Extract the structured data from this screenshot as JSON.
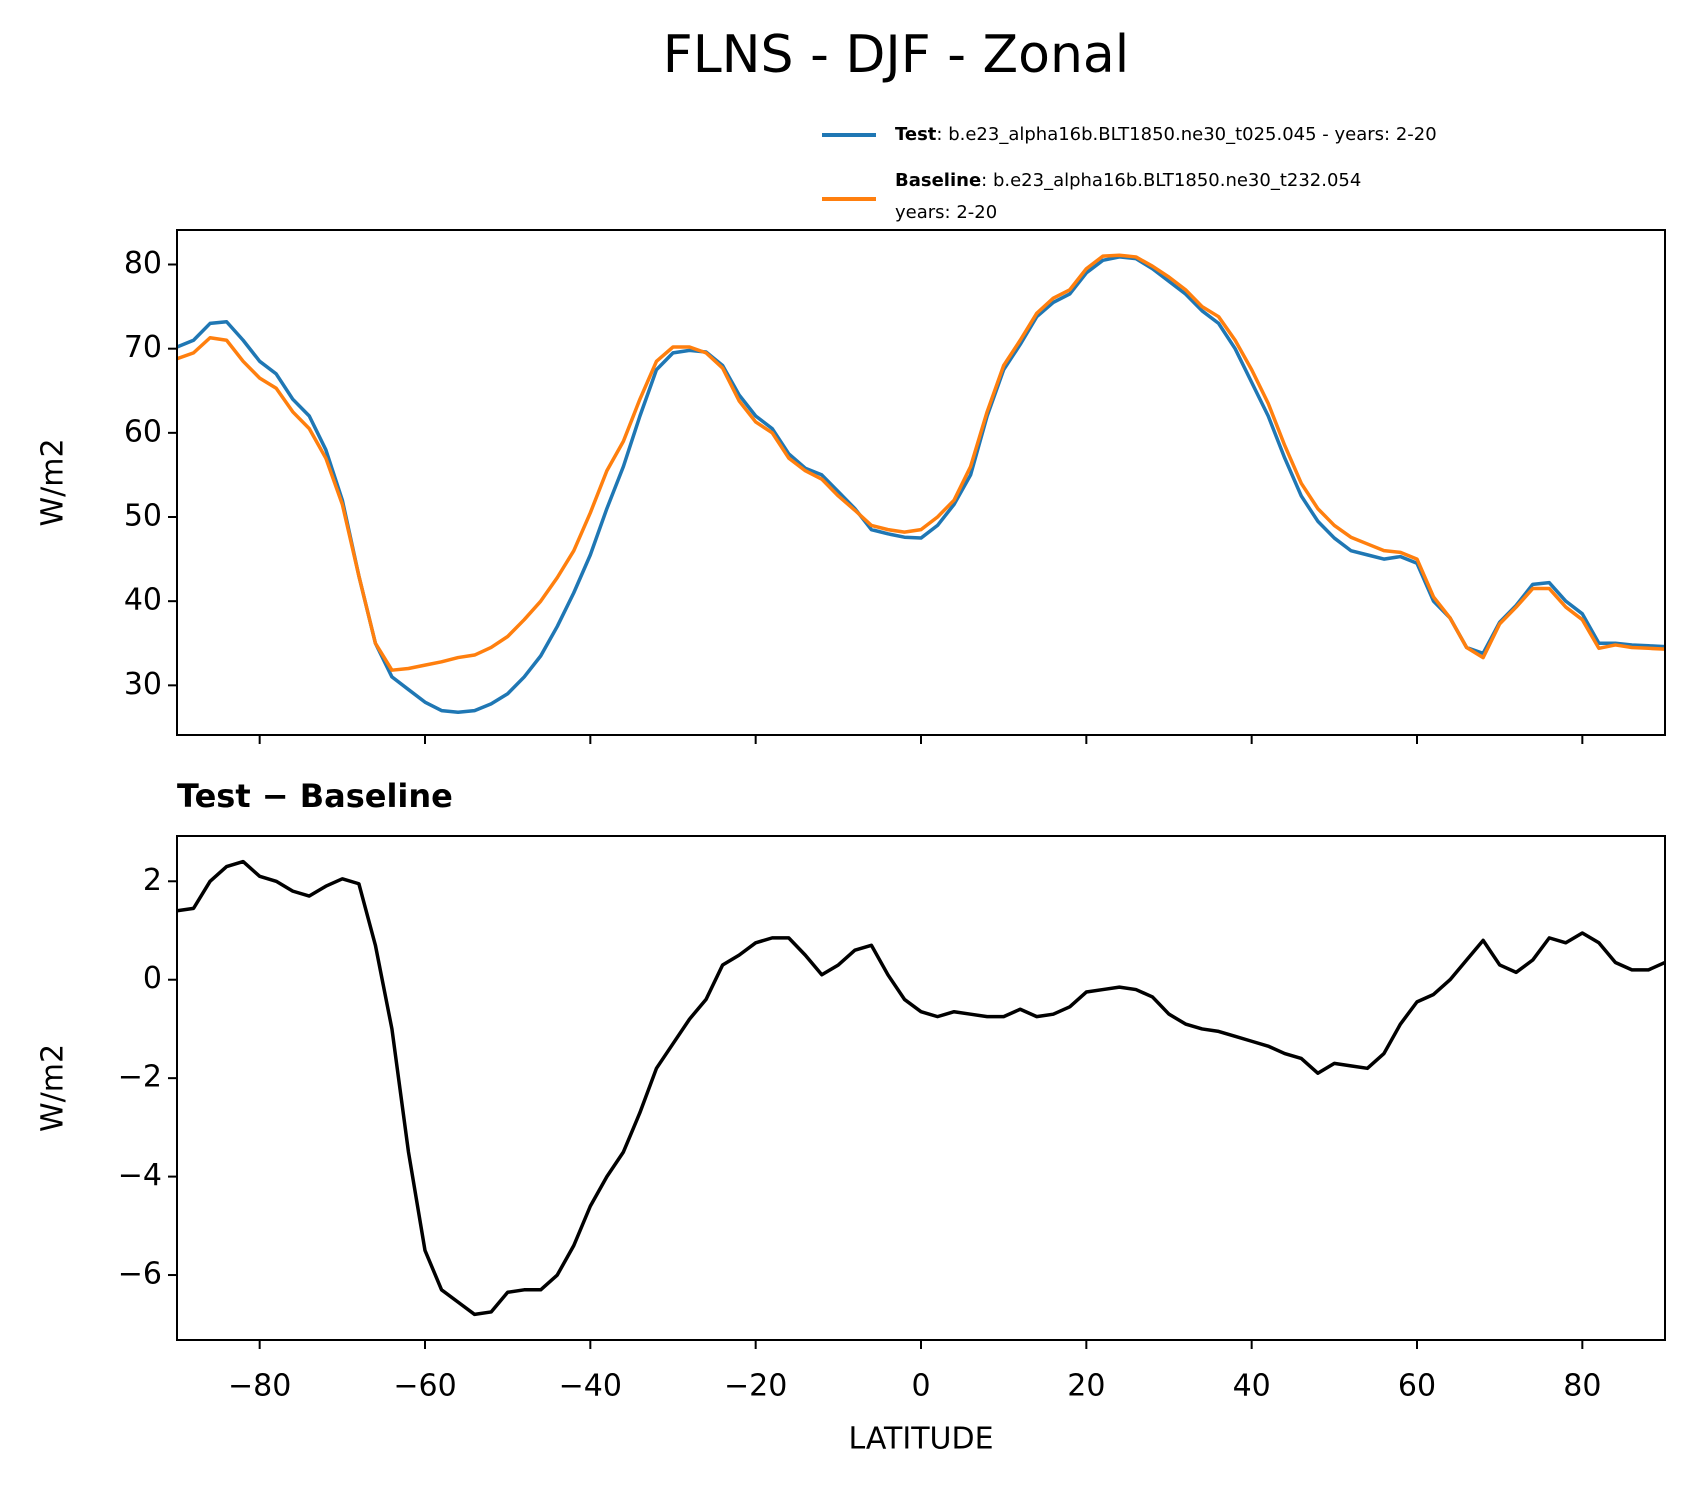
{
  "title": "FLNS - DJF - Zonal",
  "chart_data": [
    {
      "type": "line",
      "ylabel": "W/m2",
      "xlim": [
        -90,
        90
      ],
      "ylim": [
        24.1,
        84.1
      ],
      "yticks": [
        30,
        40,
        50,
        60,
        70,
        80
      ],
      "legend": "upper right",
      "x": [
        -90,
        -88,
        -86,
        -84,
        -82,
        -80,
        -78,
        -76,
        -74,
        -72,
        -70,
        -68,
        -66,
        -64,
        -62,
        -60,
        -58,
        -56,
        -54,
        -52,
        -50,
        -48,
        -46,
        -44,
        -42,
        -40,
        -38,
        -36,
        -34,
        -32,
        -30,
        -28,
        -26,
        -24,
        -22,
        -20,
        -18,
        -16,
        -14,
        -12,
        -10,
        -8,
        -6,
        -4,
        -2,
        0,
        2,
        4,
        6,
        8,
        10,
        12,
        14,
        16,
        18,
        20,
        22,
        24,
        26,
        28,
        30,
        32,
        34,
        36,
        38,
        40,
        42,
        44,
        46,
        48,
        50,
        52,
        54,
        56,
        58,
        60,
        62,
        64,
        66,
        68,
        70,
        72,
        74,
        76,
        78,
        80,
        82,
        84,
        86,
        88,
        90
      ],
      "series": [
        {
          "name": "Test",
          "description": [
            ": b.e23_alpha16b.BLT1850.ne30_t025.045 - years: 2-20"
          ],
          "color": "#1f77b4",
          "values": [
            70.2,
            71,
            73,
            73.2,
            71,
            68.5,
            67,
            64,
            62,
            58,
            52,
            43,
            35,
            31,
            29.5,
            28,
            27,
            26.8,
            27,
            27.8,
            29,
            31,
            33.5,
            37,
            41,
            45.5,
            51,
            56,
            62,
            67.5,
            69.5,
            69.8,
            69.6,
            68,
            64.5,
            62,
            60.5,
            57.5,
            55.8,
            55,
            53,
            51,
            48.5,
            48,
            47.6,
            47.5,
            49,
            51.5,
            55,
            62,
            67.5,
            70.5,
            73.8,
            75.5,
            76.5,
            79,
            80.5,
            80.9,
            80.7,
            79.5,
            78,
            76.5,
            74.5,
            73,
            70,
            66,
            62,
            57,
            52.5,
            49.5,
            47.5,
            46,
            45.5,
            45,
            45.3,
            44.5,
            40,
            38,
            34.5,
            33.8,
            37.5,
            39.5,
            42,
            42.2,
            40,
            38.5,
            35,
            35,
            34.8,
            34.7,
            34.6
          ]
        },
        {
          "name": "Baseline",
          "description": [
            ": b.e23_alpha16b.BLT1850.ne30_t232.054",
            "years: 2-20"
          ],
          "color": "#ff7f0e",
          "values": [
            68.8,
            69.5,
            71.3,
            71,
            68.5,
            66.5,
            65.3,
            62.5,
            60.5,
            57,
            51.5,
            43,
            35,
            31.8,
            32,
            32.4,
            32.8,
            33.3,
            33.6,
            34.5,
            35.8,
            37.8,
            40,
            42.8,
            46,
            50.5,
            55.5,
            59,
            64,
            68.5,
            70.2,
            70.2,
            69.5,
            67.7,
            63.8,
            61.3,
            60,
            57,
            55.5,
            54.5,
            52.5,
            50.8,
            49,
            48.5,
            48.2,
            48.5,
            50,
            52,
            56,
            62.5,
            68,
            71,
            74.2,
            76,
            77,
            79.5,
            81,
            81.1,
            80.9,
            79.8,
            78.5,
            77,
            75,
            73.8,
            71,
            67.5,
            63.5,
            58.5,
            54,
            51,
            49,
            47.6,
            46.8,
            46,
            45.8,
            45,
            40.5,
            38,
            34.5,
            33.3,
            37.3,
            39.3,
            41.5,
            41.5,
            39.3,
            37.8,
            34.4,
            34.8,
            34.5,
            34.4,
            34.3
          ]
        }
      ]
    },
    {
      "type": "line",
      "title": "Test − Baseline",
      "xlabel": "LATITUDE",
      "ylabel": "W/m2",
      "xlim": [
        -90,
        90
      ],
      "ylim": [
        -7.32,
        2.92
      ],
      "xticks": [
        {
          "value": -80,
          "label": "−80"
        },
        {
          "value": -60,
          "label": "−60"
        },
        {
          "value": -40,
          "label": "−40"
        },
        {
          "value": -20,
          "label": "−20"
        },
        0,
        20,
        40,
        60,
        80
      ],
      "yticks": [
        {
          "value": -6,
          "label": "−6"
        },
        {
          "value": -4,
          "label": "−4"
        },
        {
          "value": -2,
          "label": "−2"
        },
        0,
        2
      ],
      "x": [
        -90,
        -88,
        -86,
        -84,
        -82,
        -80,
        -78,
        -76,
        -74,
        -72,
        -70,
        -68,
        -66,
        -64,
        -62,
        -60,
        -58,
        -56,
        -54,
        -52,
        -50,
        -48,
        -46,
        -44,
        -42,
        -40,
        -38,
        -36,
        -34,
        -32,
        -30,
        -28,
        -26,
        -24,
        -22,
        -20,
        -18,
        -16,
        -14,
        -12,
        -10,
        -8,
        -6,
        -4,
        -2,
        0,
        2,
        4,
        6,
        8,
        10,
        12,
        14,
        16,
        18,
        20,
        22,
        24,
        26,
        28,
        30,
        32,
        34,
        36,
        38,
        40,
        42,
        44,
        46,
        48,
        50,
        52,
        54,
        56,
        58,
        60,
        62,
        64,
        66,
        68,
        70,
        72,
        74,
        76,
        78,
        80,
        82,
        84,
        86,
        88,
        90
      ],
      "series": [
        {
          "color": "#000000",
          "values": [
            1.4,
            1.45,
            2.0,
            2.3,
            2.4,
            2.1,
            2.0,
            1.8,
            1.7,
            1.9,
            2.05,
            1.95,
            0.7,
            -1.0,
            -3.5,
            -5.5,
            -6.3,
            -6.55,
            -6.8,
            -6.75,
            -6.35,
            -6.3,
            -6.3,
            -6.0,
            -5.4,
            -4.6,
            -4.0,
            -3.5,
            -2.7,
            -1.8,
            -1.3,
            -0.8,
            -0.4,
            0.3,
            0.5,
            0.75,
            0.85,
            0.85,
            0.5,
            0.1,
            0.3,
            0.6,
            0.7,
            0.1,
            -0.4,
            -0.65,
            -0.75,
            -0.65,
            -0.7,
            -0.75,
            -0.75,
            -0.6,
            -0.75,
            -0.7,
            -0.55,
            -0.25,
            -0.2,
            -0.15,
            -0.2,
            -0.35,
            -0.7,
            -0.9,
            -1.0,
            -1.05,
            -1.15,
            -1.25,
            -1.35,
            -1.5,
            -1.6,
            -1.9,
            -1.7,
            -1.75,
            -1.8,
            -1.5,
            -0.9,
            -0.45,
            -0.3,
            0.0,
            0.4,
            0.8,
            0.3,
            0.15,
            0.4,
            0.85,
            0.75,
            0.95,
            0.75,
            0.35,
            0.2,
            0.2,
            0.35
          ]
        }
      ]
    }
  ]
}
